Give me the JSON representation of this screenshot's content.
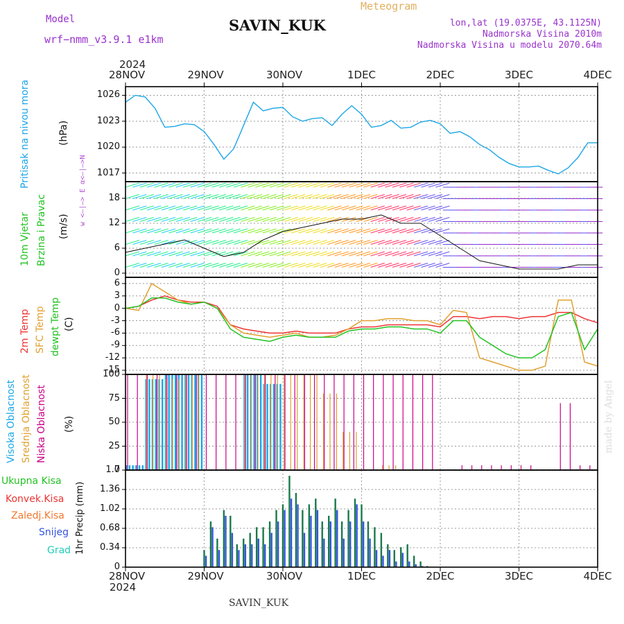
{
  "header": {
    "model_label": "Model",
    "model_value": "wrf−nmm_v3.9.1  e1km",
    "station": "SAVIN_KUK",
    "title": "Meteogram",
    "coords": "lon,lat (19.0375E, 43.1125N)",
    "altitude": "Nadmorska Visina 2010m",
    "model_altitude": "Nadmorska Visina u modelu 2070.64m"
  },
  "footer": {
    "station": "SAVIN_KUK",
    "watermark": "made by Angel"
  },
  "colors": {
    "pressure": "#1ca6e6",
    "green": "#22c222",
    "red": "#ee3333",
    "orange": "#e0a030",
    "magenta": "#cc0088",
    "blue": "#3355dd",
    "teal": "#22ccbb",
    "purple": "#9933cc",
    "darkgreen": "#1a7a4a"
  },
  "time_axis": {
    "year_top": "2024",
    "year_bottom": "2024",
    "ticks": [
      "28NOV",
      "29NOV",
      "30NOV",
      "1DEC",
      "2DEC",
      "3DEC",
      "4DEC"
    ]
  },
  "panels": {
    "pressure": {
      "label": "Pritisak na nivou mora",
      "unit": "(hPa)",
      "yticks": [
        "1026",
        "1023",
        "1020",
        "1017"
      ]
    },
    "wind": {
      "label1": "10m Vjetar",
      "label2": "Brzina i Pravac",
      "unit": "(m/s)",
      "yticks": [
        "18",
        "12",
        "6",
        "0"
      ],
      "compass": "w  <—|—>  E   α<—|—>N"
    },
    "temp": {
      "label1": "2m Temp",
      "label2": "SFC Temp",
      "label3": "dewpt Temp",
      "unit": "(C)",
      "yticks": [
        "6",
        "3",
        "0",
        "-3",
        "-6",
        "-9",
        "-12",
        "-15"
      ]
    },
    "cloud": {
      "label1": "Visoka Oblacnost",
      "label2": "Srednja Oblacnost",
      "label3": "Niska Oblacnost",
      "unit": "(%)",
      "yticks": [
        "100",
        "75",
        "50",
        "25",
        "0"
      ]
    },
    "precip": {
      "label1": "Ukupna Kisa",
      "label2": "Konvek.Kisa",
      "label3": "Zaledj.Kisa",
      "label4": "Snijeg",
      "label5": "Grad",
      "unit": "1hr Precip (mm)",
      "yticks": [
        "1.7",
        "1.36",
        "1.02",
        "0.68",
        "0.34",
        "0"
      ]
    }
  },
  "chart_data": [
    {
      "type": "line",
      "name": "pressure",
      "x": [
        0,
        3,
        6,
        9,
        12,
        15,
        18,
        21,
        24,
        27,
        30,
        33,
        36,
        39,
        42,
        45,
        48,
        51,
        54,
        57,
        60,
        63,
        66,
        69,
        72,
        75,
        78,
        81,
        84,
        87,
        90,
        93,
        96,
        99,
        102,
        105,
        108,
        111,
        114,
        117,
        120,
        123,
        126,
        129,
        132,
        135,
        138,
        141,
        144
      ],
      "series": [
        {
          "values": [
            1025.2,
            1026,
            1025.8,
            1024.5,
            1022.3,
            1022.4,
            1022.7,
            1022.6,
            1021.8,
            1020.3,
            1018.6,
            1019.8,
            1022.5,
            1025.2,
            1024.2,
            1024.5,
            1024.6,
            1023.5,
            1023.0,
            1023.3,
            1023.4,
            1022.5,
            1023.8,
            1024.8,
            1023.8,
            1022.3,
            1022.5,
            1023.1,
            1022.2,
            1022.3,
            1022.9,
            1023.1,
            1022.7,
            1021.6,
            1021.8,
            1021.2,
            1020.3,
            1019.7,
            1018.8,
            1018.1,
            1017.7,
            1017.7,
            1017.8,
            1017.3,
            1016.9,
            1017.6,
            1018.8,
            1020.5,
            1020.5
          ]
        }
      ],
      "ylim": [
        1016,
        1027
      ],
      "x_range": [
        0,
        144
      ]
    },
    {
      "type": "line",
      "name": "wind_speed",
      "x": [
        0,
        6,
        12,
        18,
        24,
        30,
        36,
        42,
        48,
        54,
        60,
        66,
        72,
        78,
        84,
        90,
        96,
        102,
        108,
        114,
        120,
        126,
        132,
        138,
        144
      ],
      "series": [
        {
          "values": [
            5,
            6,
            7,
            8,
            6,
            4,
            5,
            8,
            10,
            11,
            12,
            13,
            13,
            14,
            12,
            12,
            9,
            6,
            3,
            2,
            1,
            1,
            1,
            2,
            2
          ]
        }
      ],
      "ylim": [
        -1,
        22
      ],
      "x_range": [
        0,
        144
      ]
    },
    {
      "type": "line",
      "name": "temperature",
      "x": [
        0,
        4,
        8,
        12,
        16,
        20,
        24,
        28,
        32,
        36,
        40,
        44,
        48,
        52,
        56,
        60,
        64,
        68,
        72,
        76,
        80,
        84,
        88,
        92,
        96,
        100,
        104,
        108,
        112,
        116,
        120,
        124,
        128,
        132,
        136,
        140,
        144
      ],
      "series": [
        {
          "name": "2m Temp",
          "values": [
            0,
            0.5,
            2,
            3,
            2,
            1.5,
            1.5,
            0.5,
            -4,
            -5,
            -5.5,
            -6,
            -6,
            -5.5,
            -6,
            -6,
            -6,
            -5,
            -4.5,
            -4.5,
            -4,
            -4,
            -4,
            -4,
            -4.5,
            -2,
            -2,
            -2.5,
            -2,
            -2,
            -2.5,
            -2,
            -2,
            -1,
            -1,
            -2.5,
            -3.5
          ]
        },
        {
          "name": "SFC Temp",
          "values": [
            0,
            -0.5,
            6,
            4,
            2,
            1,
            1.5,
            0,
            -4,
            -6,
            -6.5,
            -7,
            -6.5,
            -6,
            -7,
            -7,
            -6.5,
            -5,
            -3,
            -3,
            -2.5,
            -2.5,
            -3,
            -3,
            -4,
            -0.5,
            -1,
            -12,
            -13,
            -14,
            -15,
            -15,
            -14,
            2,
            2,
            -13,
            -14
          ]
        },
        {
          "name": "dewpt Temp",
          "values": [
            0,
            0.5,
            2.5,
            2.5,
            1.5,
            1,
            1.5,
            0,
            -5,
            -7,
            -7.5,
            -8,
            -7,
            -6.5,
            -7,
            -7,
            -7,
            -5.5,
            -5,
            -5,
            -4.5,
            -4.5,
            -5,
            -5,
            -6,
            -3,
            -3,
            -7,
            -9,
            -11,
            -12,
            -12,
            -10,
            -2,
            -1,
            -10,
            -5
          ]
        }
      ],
      "ylim": [
        -16,
        7.5
      ],
      "x_range": [
        0,
        144
      ]
    },
    {
      "type": "bar",
      "name": "cloud_cover",
      "series": [
        {
          "name": "Visoka Oblacnost",
          "values": [
            5,
            95,
            100,
            100,
            0,
            0,
            100,
            90,
            0,
            0,
            0,
            0,
            0,
            0,
            0,
            0,
            0,
            0,
            0,
            0,
            0,
            0,
            0,
            0
          ]
        },
        {
          "name": "Srednja Oblacnost",
          "values": [
            0,
            100,
            95,
            100,
            0,
            0,
            100,
            100,
            100,
            100,
            80,
            40,
            0,
            5,
            0,
            0,
            0,
            0,
            0,
            0,
            0,
            0,
            0,
            0
          ]
        },
        {
          "name": "Niska Oblacnost",
          "values": [
            100,
            100,
            100,
            100,
            100,
            100,
            100,
            100,
            100,
            100,
            100,
            100,
            100,
            100,
            100,
            100,
            0,
            5,
            5,
            5,
            5,
            0,
            70,
            5
          ]
        }
      ],
      "ylim": [
        0,
        100
      ],
      "x_range": [
        0,
        144
      ]
    },
    {
      "type": "bar",
      "name": "precip",
      "x": [
        24,
        26,
        28,
        30,
        32,
        34,
        36,
        38,
        40,
        42,
        44,
        46,
        48,
        50,
        52,
        54,
        56,
        58,
        60,
        62,
        64,
        66,
        68,
        70,
        72,
        74,
        76,
        78,
        80,
        82,
        84,
        86,
        88,
        90,
        92
      ],
      "series": [
        {
          "name": "Ukupna Kisa",
          "values": [
            0.3,
            0.8,
            0.5,
            1.0,
            0.9,
            0.4,
            0.5,
            0.6,
            0.7,
            0.7,
            0.8,
            1.0,
            1.1,
            1.6,
            1.3,
            1.0,
            1.1,
            1.2,
            0.8,
            0.9,
            1.2,
            0.8,
            1.0,
            1.2,
            1.1,
            0.8,
            0.7,
            0.6,
            0.4,
            0.3,
            0.35,
            0.4,
            0.2,
            0.1,
            0.02
          ]
        },
        {
          "name": "Snijeg",
          "values": [
            0.2,
            0.7,
            0.3,
            0.9,
            0.6,
            0.3,
            0.4,
            0.4,
            0.5,
            0.4,
            0.6,
            0.8,
            1.0,
            1.2,
            1.1,
            0.6,
            0.9,
            1.0,
            0.5,
            0.8,
            1.0,
            0.5,
            0.8,
            1.1,
            0.8,
            0.5,
            0.3,
            0.2,
            0.3,
            0.1,
            0.25,
            0.1,
            0.05,
            0.02,
            0
          ]
        }
      ],
      "ylim": [
        0,
        1.7
      ],
      "x_range": [
        0,
        144
      ]
    }
  ]
}
